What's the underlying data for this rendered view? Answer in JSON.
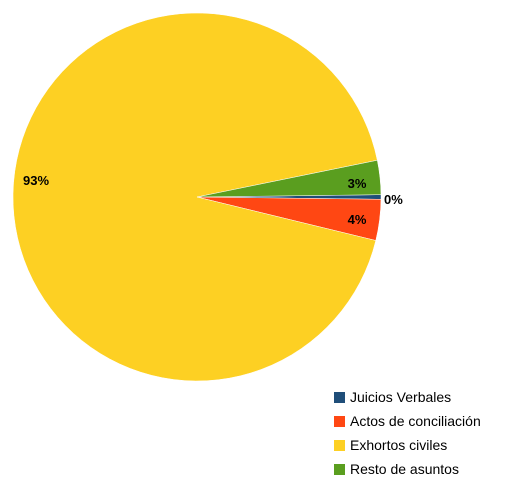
{
  "chart_data": {
    "type": "pie",
    "title": "",
    "slices": [
      {
        "label": "Juicios Verbales",
        "value": 0.4,
        "display": "0%",
        "color": "#1f4e79"
      },
      {
        "label": "Actos de conciliación",
        "value": 3.6,
        "display": "4%",
        "color": "#ff4713"
      },
      {
        "label": "Exhortos civiles",
        "value": 93.0,
        "display": "93%",
        "color": "#fdd023"
      },
      {
        "label": "Resto de asuntos",
        "value": 3.0,
        "display": "3%",
        "color": "#5a9e1f"
      }
    ],
    "legend": {
      "placement": "bottom-right",
      "items": [
        "Juicios Verbales",
        "Actos de conciliación",
        "Exhortos civiles",
        "Resto de asuntos"
      ]
    }
  }
}
